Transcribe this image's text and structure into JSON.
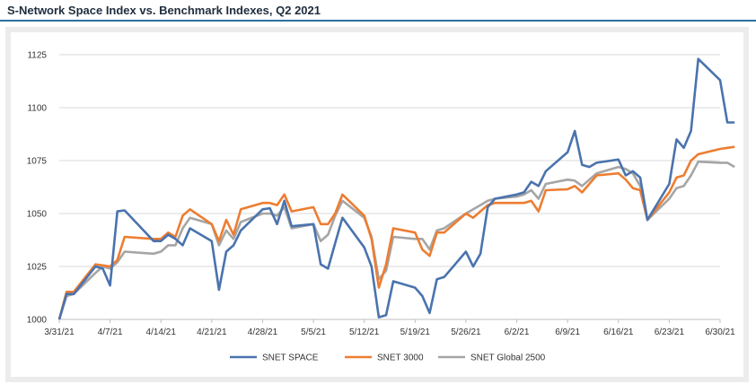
{
  "chart_data": {
    "type": "line",
    "title": "S-Network Space Index vs. Benchmark Indexes, Q2 2021",
    "xlabel": "",
    "ylabel": "",
    "ylim": [
      1000,
      1125
    ],
    "yticks": [
      1000,
      1025,
      1050,
      1075,
      1100,
      1125
    ],
    "x_start": "3/31/21",
    "x_days": 91,
    "xtick_labels": [
      "3/31/21",
      "4/7/21",
      "4/14/21",
      "4/21/21",
      "4/28/21",
      "5/5/21",
      "5/12/21",
      "5/19/21",
      "5/26/21",
      "6/2/21",
      "6/9/21",
      "6/16/21",
      "6/23/21",
      "6/30/21"
    ],
    "grid": "horizontal",
    "legend_position": "bottom",
    "series": [
      {
        "name": "SNET SPACE",
        "color": "#4a73ae",
        "points": [
          [
            0,
            1000
          ],
          [
            1,
            1012
          ],
          [
            2,
            1012
          ],
          [
            5,
            1025
          ],
          [
            6,
            1024
          ],
          [
            7,
            1016
          ],
          [
            8,
            1051
          ],
          [
            9,
            1051.5
          ],
          [
            13,
            1037
          ],
          [
            14,
            1037
          ],
          [
            15,
            1040
          ],
          [
            16,
            1038
          ],
          [
            17,
            1035
          ],
          [
            18,
            1043
          ],
          [
            21,
            1037
          ],
          [
            22,
            1014
          ],
          [
            23,
            1032
          ],
          [
            24,
            1035
          ],
          [
            25,
            1042
          ],
          [
            28,
            1052
          ],
          [
            29,
            1052.5
          ],
          [
            30,
            1045
          ],
          [
            31,
            1056
          ],
          [
            32,
            1044
          ],
          [
            35,
            1045
          ],
          [
            36,
            1026
          ],
          [
            37,
            1024
          ],
          [
            38,
            1036
          ],
          [
            39,
            1048
          ],
          [
            42,
            1034
          ],
          [
            43,
            1025
          ],
          [
            44,
            1001
          ],
          [
            45,
            1002
          ],
          [
            46,
            1018
          ],
          [
            49,
            1015
          ],
          [
            50,
            1011
          ],
          [
            51,
            1003
          ],
          [
            52,
            1019
          ],
          [
            53,
            1020
          ],
          [
            56,
            1032
          ],
          [
            57,
            1025
          ],
          [
            58,
            1031
          ],
          [
            59,
            1053
          ],
          [
            60,
            1057
          ],
          [
            63,
            1059
          ],
          [
            64,
            1060
          ],
          [
            65,
            1065
          ],
          [
            66,
            1063
          ],
          [
            67,
            1070
          ],
          [
            70,
            1079
          ],
          [
            71,
            1089
          ],
          [
            72,
            1073
          ],
          [
            73,
            1072
          ],
          [
            74,
            1074
          ],
          [
            77,
            1075.5
          ],
          [
            78,
            1068
          ],
          [
            79,
            1070
          ],
          [
            80,
            1067
          ],
          [
            81,
            1047
          ],
          [
            84,
            1064
          ],
          [
            85,
            1085
          ],
          [
            86,
            1081
          ],
          [
            87,
            1089
          ],
          [
            88,
            1123
          ],
          [
            91,
            1113
          ],
          [
            92,
            1093
          ],
          [
            93,
            1093
          ]
        ]
      },
      {
        "name": "SNET 3000",
        "color": "#ed7d31",
        "points": [
          [
            0,
            1000
          ],
          [
            1,
            1013
          ],
          [
            2,
            1013
          ],
          [
            5,
            1026
          ],
          [
            6,
            1025.5
          ],
          [
            7,
            1025
          ],
          [
            8,
            1028
          ],
          [
            9,
            1039
          ],
          [
            13,
            1038
          ],
          [
            14,
            1038
          ],
          [
            15,
            1041
          ],
          [
            16,
            1039
          ],
          [
            17,
            1049
          ],
          [
            18,
            1052
          ],
          [
            21,
            1045
          ],
          [
            22,
            1037
          ],
          [
            23,
            1047
          ],
          [
            24,
            1040
          ],
          [
            25,
            1052
          ],
          [
            28,
            1055
          ],
          [
            29,
            1055
          ],
          [
            30,
            1054
          ],
          [
            31,
            1059
          ],
          [
            32,
            1051
          ],
          [
            35,
            1053
          ],
          [
            36,
            1045
          ],
          [
            37,
            1045
          ],
          [
            38,
            1050
          ],
          [
            39,
            1059
          ],
          [
            42,
            1049
          ],
          [
            43,
            1038
          ],
          [
            44,
            1015
          ],
          [
            45,
            1026
          ],
          [
            46,
            1043
          ],
          [
            49,
            1041
          ],
          [
            50,
            1033
          ],
          [
            51,
            1030
          ],
          [
            52,
            1041
          ],
          [
            53,
            1041
          ],
          [
            56,
            1050
          ],
          [
            57,
            1048
          ],
          [
            58,
            1051
          ],
          [
            59,
            1054
          ],
          [
            60,
            1055
          ],
          [
            63,
            1055
          ],
          [
            64,
            1055
          ],
          [
            65,
            1056
          ],
          [
            66,
            1051
          ],
          [
            67,
            1061
          ],
          [
            70,
            1061.5
          ],
          [
            71,
            1063
          ],
          [
            72,
            1060
          ],
          [
            73,
            1064
          ],
          [
            74,
            1068
          ],
          [
            77,
            1069
          ],
          [
            78,
            1066
          ],
          [
            79,
            1062
          ],
          [
            80,
            1061
          ],
          [
            81,
            1047
          ],
          [
            84,
            1060
          ],
          [
            85,
            1067
          ],
          [
            86,
            1068
          ],
          [
            87,
            1075
          ],
          [
            88,
            1078
          ],
          [
            91,
            1080.5
          ],
          [
            92,
            1081
          ],
          [
            93,
            1081.5
          ]
        ]
      },
      {
        "name": "SNET Global 2500",
        "color": "#a5a5a5",
        "points": [
          [
            0,
            1000
          ],
          [
            1,
            1011
          ],
          [
            2,
            1012
          ],
          [
            5,
            1022
          ],
          [
            6,
            1025
          ],
          [
            7,
            1024
          ],
          [
            8,
            1027
          ],
          [
            9,
            1032
          ],
          [
            13,
            1031
          ],
          [
            14,
            1032
          ],
          [
            15,
            1035
          ],
          [
            16,
            1035
          ],
          [
            17,
            1043
          ],
          [
            18,
            1048
          ],
          [
            21,
            1045
          ],
          [
            22,
            1035
          ],
          [
            23,
            1042
          ],
          [
            24,
            1038
          ],
          [
            25,
            1046
          ],
          [
            28,
            1050
          ],
          [
            29,
            1050
          ],
          [
            30,
            1049
          ],
          [
            31,
            1053
          ],
          [
            32,
            1043
          ],
          [
            35,
            1045
          ],
          [
            36,
            1037
          ],
          [
            37,
            1040
          ],
          [
            38,
            1049
          ],
          [
            39,
            1056
          ],
          [
            42,
            1048
          ],
          [
            43,
            1039
          ],
          [
            44,
            1019
          ],
          [
            45,
            1023
          ],
          [
            46,
            1039
          ],
          [
            49,
            1038
          ],
          [
            50,
            1038
          ],
          [
            51,
            1033
          ],
          [
            52,
            1042
          ],
          [
            53,
            1043
          ],
          [
            56,
            1050
          ],
          [
            57,
            1052
          ],
          [
            58,
            1054
          ],
          [
            59,
            1056
          ],
          [
            60,
            1057
          ],
          [
            63,
            1058
          ],
          [
            64,
            1059
          ],
          [
            65,
            1061
          ],
          [
            66,
            1057
          ],
          [
            67,
            1064
          ],
          [
            70,
            1066
          ],
          [
            71,
            1065.5
          ],
          [
            72,
            1063
          ],
          [
            73,
            1066
          ],
          [
            74,
            1069
          ],
          [
            77,
            1072
          ],
          [
            78,
            1071
          ],
          [
            79,
            1069
          ],
          [
            80,
            1063
          ],
          [
            81,
            1047
          ],
          [
            84,
            1057
          ],
          [
            85,
            1062
          ],
          [
            86,
            1063
          ],
          [
            87,
            1068
          ],
          [
            88,
            1074.5
          ],
          [
            91,
            1074
          ],
          [
            92,
            1074
          ],
          [
            93,
            1072
          ]
        ]
      }
    ]
  }
}
